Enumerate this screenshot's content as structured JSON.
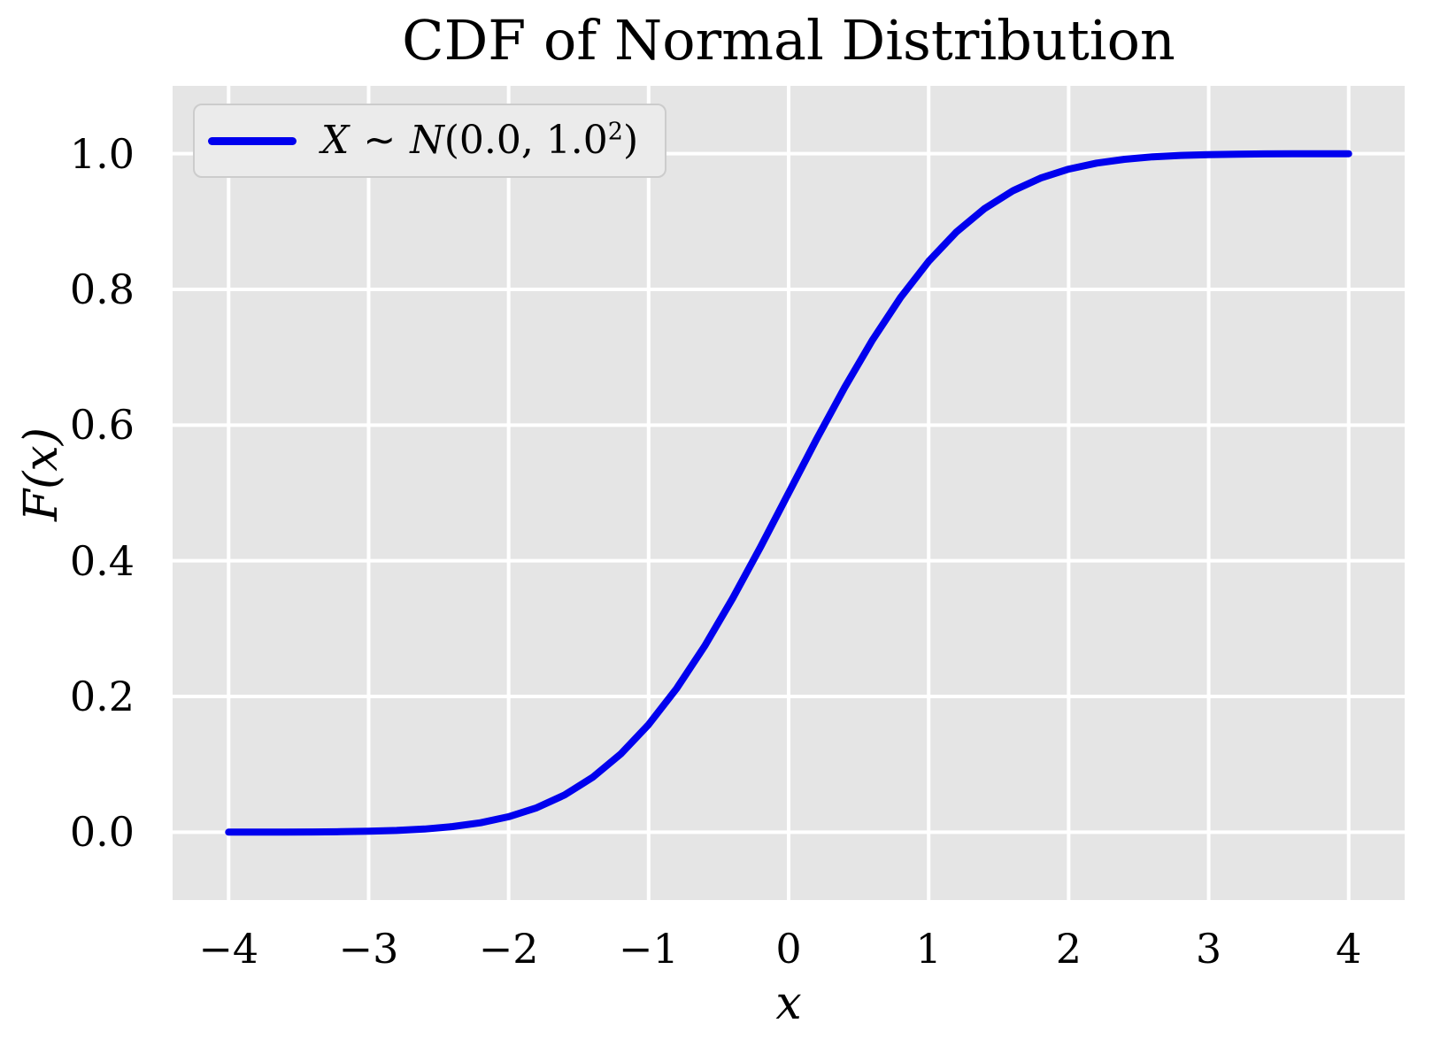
{
  "colors": {
    "line": "#0000ee",
    "plot_bg": "#e5e5e5",
    "grid": "#ffffff",
    "text": "#000000",
    "figure_bg": "#ffffff",
    "legend_bg": "#ebebeb",
    "legend_border": "#cccccc"
  },
  "legend": {
    "var_symbol": "X",
    "tilde": "∼",
    "dist_symbol": "N",
    "args_open": "(0.0, 1.0",
    "exponent": "2",
    "close_paren": ")"
  },
  "chart_data": {
    "type": "line",
    "title": "CDF of Normal Distribution",
    "xlabel": "x",
    "ylabel": "F(x)",
    "xlim": [
      -4.4,
      4.4
    ],
    "ylim": [
      -0.1,
      1.1
    ],
    "grid": true,
    "legend_position": "upper left",
    "x_ticks": [
      -4,
      -3,
      -2,
      -1,
      0,
      1,
      2,
      3,
      4
    ],
    "x_tick_labels": [
      "−4",
      "−3",
      "−2",
      "−1",
      "0",
      "1",
      "2",
      "3",
      "4"
    ],
    "y_ticks": [
      0.0,
      0.2,
      0.4,
      0.6,
      0.8,
      1.0
    ],
    "y_tick_labels": [
      "0.0",
      "0.2",
      "0.4",
      "0.6",
      "0.8",
      "1.0"
    ],
    "series": [
      {
        "name": "X ~ N(0.0, 1.0²)",
        "color": "#0000ee",
        "x": [
          -4.0,
          -3.8,
          -3.6,
          -3.4,
          -3.2,
          -3.0,
          -2.8,
          -2.6,
          -2.4,
          -2.2,
          -2.0,
          -1.8,
          -1.6,
          -1.4,
          -1.2,
          -1.0,
          -0.8,
          -0.6,
          -0.4,
          -0.2,
          0.0,
          0.2,
          0.4,
          0.6,
          0.8,
          1.0,
          1.2,
          1.4,
          1.6,
          1.8,
          2.0,
          2.2,
          2.4,
          2.6,
          2.8,
          3.0,
          3.2,
          3.4,
          3.6,
          3.8,
          4.0
        ],
        "y": [
          3e-05,
          7e-05,
          0.00016,
          0.00034,
          0.00069,
          0.00135,
          0.00256,
          0.00466,
          0.0082,
          0.0139,
          0.02275,
          0.03593,
          0.0548,
          0.08076,
          0.11507,
          0.15866,
          0.21186,
          0.27425,
          0.34458,
          0.42074,
          0.5,
          0.57926,
          0.65542,
          0.72575,
          0.78814,
          0.84134,
          0.88493,
          0.91924,
          0.9452,
          0.96407,
          0.97725,
          0.9861,
          0.9918,
          0.99534,
          0.99744,
          0.99865,
          0.99931,
          0.99966,
          0.99984,
          0.99993,
          0.99997
        ]
      }
    ]
  }
}
